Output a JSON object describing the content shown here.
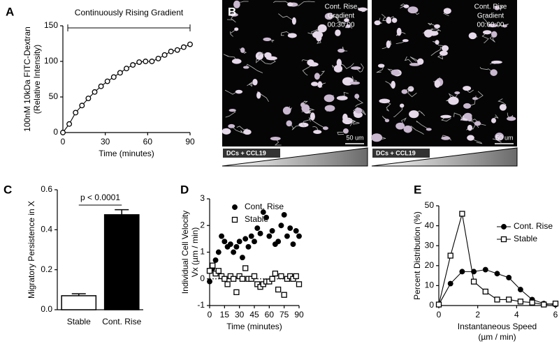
{
  "chart_data": [
    {
      "type": "line",
      "panel": "A",
      "annotation": "Continuously  Rising Gradient",
      "x_label": [
        "Time (minutes)"
      ],
      "y_label": [
        "100nM 10kDa FITC-Dextran",
        "(Relative Intensity)"
      ],
      "xlim": [
        0,
        90
      ],
      "ylim": [
        0,
        150
      ],
      "xticks": [
        0,
        30,
        60,
        90
      ],
      "yticks": [
        0,
        50,
        100,
        150
      ],
      "x": [
        0,
        4.5,
        9,
        13.5,
        18,
        22.5,
        27,
        31.5,
        36,
        40.5,
        45,
        49.5,
        54,
        58.5,
        63,
        67.5,
        72,
        76.5,
        81,
        85.5,
        90
      ],
      "series": [
        {
          "color": "#000000",
          "marker": "circle",
          "filled": false,
          "values": [
            0,
            12,
            28,
            38,
            48,
            57,
            65,
            72,
            78,
            84,
            90,
            95,
            99,
            100,
            100,
            104,
            109,
            114,
            116,
            120,
            124
          ]
        }
      ]
    },
    {
      "type": "bar",
      "panel": "C",
      "annotation": "p < 0.0001",
      "y_label": [
        "Migratory Persistence in X"
      ],
      "categories": [
        "Stable",
        "Cont. Rise"
      ],
      "values": [
        0.07,
        0.475
      ],
      "errors": [
        0.01,
        0.025
      ],
      "colors": [
        "#ffffff",
        "#000000"
      ],
      "ylim": [
        0,
        0.6
      ],
      "yticks": [
        {
          "value": 0,
          "label": "0.0"
        },
        0.2,
        0.4,
        0.6
      ]
    },
    {
      "type": "scatter",
      "panel": "D",
      "legend": "upper left",
      "zero_line": true,
      "x_label": [
        "Time (minutes)"
      ],
      "y_label": [
        "Individual  Cell Velocity",
        "Vx  (µm / min)"
      ],
      "xlim": [
        0,
        90
      ],
      "ylim": [
        -1,
        3
      ],
      "xticks": [
        0,
        15,
        30,
        45,
        60,
        75,
        90
      ],
      "yticks": [
        -1,
        0,
        1,
        2,
        3
      ],
      "x": [
        0,
        3,
        6,
        9,
        12,
        15,
        18,
        21,
        24,
        27,
        30,
        33,
        36,
        39,
        42,
        45,
        48,
        51,
        54,
        57,
        60,
        63,
        66,
        69,
        72,
        75,
        78,
        81,
        84,
        87,
        90
      ],
      "series": [
        {
          "name": "Cont. Rise",
          "color": "#000000",
          "marker": "circle",
          "filled": true,
          "values": [
            -0.1,
            0.4,
            0.7,
            1.0,
            1.6,
            1.4,
            1.2,
            1.3,
            1.0,
            1.2,
            1.4,
            0.8,
            1.5,
            1.2,
            1.6,
            1.4,
            1.9,
            1.7,
            2.5,
            2.3,
            1.6,
            1.8,
            1.3,
            1.4,
            2.0,
            2.4,
            1.6,
            1.9,
            1.3,
            1.8,
            1.6
          ]
        },
        {
          "name": "Stable",
          "color": "#000000",
          "marker": "square",
          "filled": false,
          "values": [
            0.3,
            0.5,
            0.2,
            0.3,
            0.1,
            0.0,
            -0.2,
            0.1,
            0.0,
            -0.5,
            0.1,
            0.0,
            0.4,
            0.0,
            0.0,
            0.1,
            -0.2,
            -0.3,
            -0.2,
            -0.1,
            -0.1,
            0.0,
            0.2,
            -0.4,
            0.1,
            -0.6,
            0.0,
            0.1,
            0.0,
            0.1,
            -0.2
          ]
        }
      ]
    },
    {
      "type": "line",
      "panel": "E",
      "legend": "upper right",
      "x_label": [
        "Instantaneous   Speed",
        "(µm / min)"
      ],
      "y_label": [
        "Percent Distribution (%)"
      ],
      "xlim": [
        0,
        6
      ],
      "ylim": [
        0,
        50
      ],
      "xticks": [
        0,
        2,
        4,
        6
      ],
      "yticks": [
        0,
        10,
        20,
        30,
        40,
        50
      ],
      "x": [
        0,
        0.6,
        1.2,
        1.8,
        2.4,
        3.0,
        3.6,
        4.2,
        4.8,
        5.4,
        6.0
      ],
      "series": [
        {
          "name": "Cont. Rise",
          "color": "#000000",
          "marker": "circle",
          "filled": true,
          "values": [
            0.5,
            11,
            17,
            17,
            18,
            16,
            14,
            8,
            3,
            1,
            0.5
          ]
        },
        {
          "name": "Stable",
          "color": "#000000",
          "marker": "square",
          "filled": false,
          "values": [
            0.5,
            25,
            46,
            12,
            7,
            3,
            3,
            2,
            1.5,
            0.5,
            1
          ]
        }
      ]
    }
  ],
  "images": [
    {
      "panel": "B",
      "lines": [
        "Cont. Rise",
        "Gradient",
        "00:30:00"
      ],
      "scale_bar": "50 um",
      "gradient_label": "DCs + CCL19"
    },
    {
      "lines": [
        "Cont. Rise",
        "Gradient",
        "00:60:00"
      ],
      "scale_bar": "50 um",
      "gradient_label": "DCs + CCL19"
    }
  ]
}
